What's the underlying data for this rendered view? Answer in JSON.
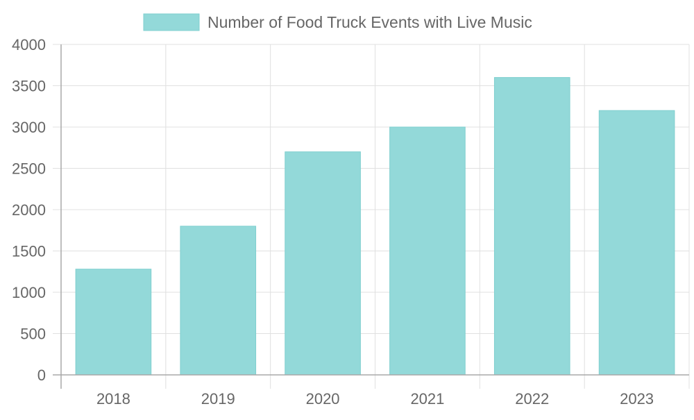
{
  "chart_data": {
    "type": "bar",
    "title": "",
    "xlabel": "",
    "ylabel": "",
    "categories": [
      "2018",
      "2019",
      "2020",
      "2021",
      "2022",
      "2023"
    ],
    "series": [
      {
        "name": "Number of Food Truck Events with Live Music",
        "values": [
          1280,
          1800,
          2700,
          3000,
          3600,
          3200
        ]
      }
    ],
    "ylim": [
      0,
      4000
    ],
    "y_ticks": [
      "0",
      "500",
      "1000",
      "1500",
      "2000",
      "2500",
      "3000",
      "3500",
      "4000"
    ],
    "grid": true,
    "legend_position": "top-center",
    "colors": {
      "bar_fill": "#93d9d9",
      "bar_stroke": "#7fcfcf",
      "grid": "#e0e0e0",
      "axis": "#a8a8a8",
      "text": "#666666"
    }
  }
}
